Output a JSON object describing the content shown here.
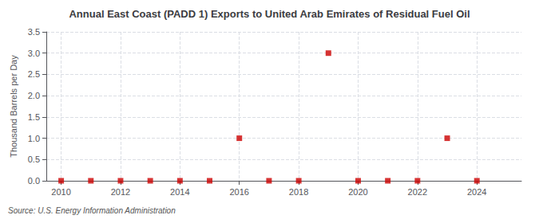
{
  "chart_data": {
    "type": "scatter",
    "title": "Annual East Coast (PADD 1) Exports to United Arab Emirates of Residual Fuel Oil",
    "y_label": "Thousand Barrels per Day",
    "annotation": "Source: U.S. Energy Information Administration",
    "x": [
      2010,
      2011,
      2012,
      2013,
      2014,
      2015,
      2016,
      2017,
      2018,
      2019,
      2020,
      2021,
      2022,
      2023,
      2024
    ],
    "values": [
      0.0,
      0.0,
      0.0,
      0.0,
      0.0,
      0.0,
      1.0,
      0.0,
      0.0,
      3.0,
      0.0,
      0.0,
      0.0,
      1.0,
      0.0
    ],
    "color": "#cc0000",
    "marker": "square",
    "xlim": [
      2009.5,
      2025.5
    ],
    "xticks": [
      2010,
      2012,
      2014,
      2016,
      2018,
      2020,
      2022,
      2024
    ],
    "ylim": [
      0,
      3.5
    ],
    "yticks": [
      {
        "value": 0.0,
        "label": "0.0"
      },
      {
        "value": 0.5,
        "label": "0.5"
      },
      {
        "value": 1.0,
        "label": "1.0"
      },
      {
        "value": 1.5,
        "label": "1.5"
      },
      {
        "value": 2.0,
        "label": "2.0"
      },
      {
        "value": 2.5,
        "label": "2.5"
      },
      {
        "value": 3.0,
        "label": "3.0"
      },
      {
        "value": 3.5,
        "label": "3.5"
      }
    ],
    "grid": true
  }
}
